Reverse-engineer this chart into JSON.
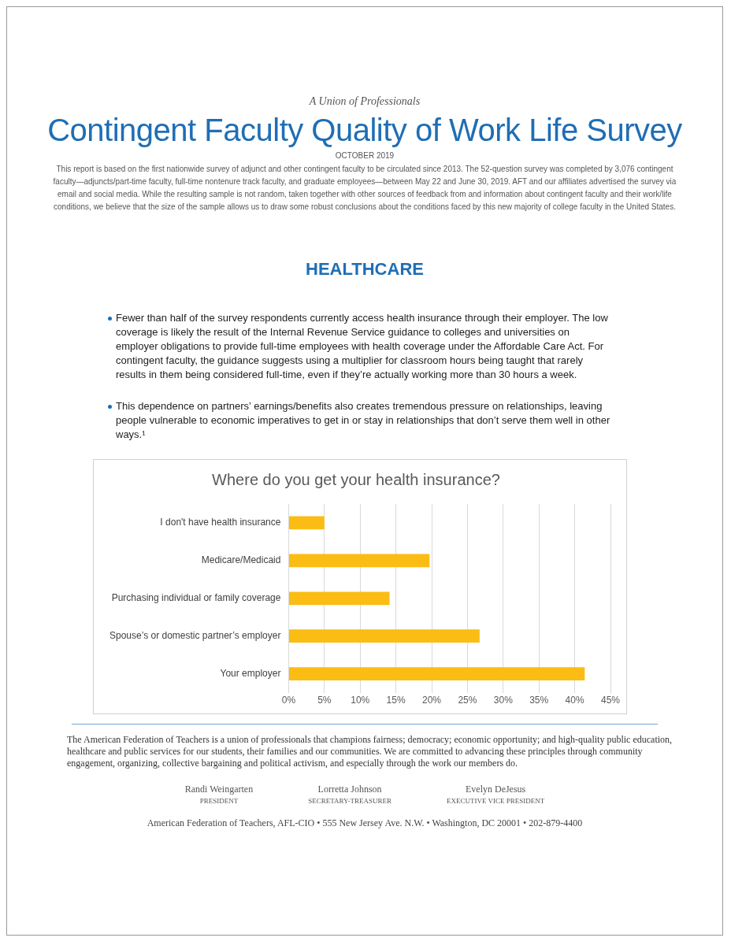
{
  "chart_data": {
    "type": "bar",
    "orientation": "horizontal",
    "title": "Where do you get your health insurance?",
    "categories": [
      "I don't have health insurance",
      "Medicare/Medicaid",
      "Purchasing individual or family coverage",
      "Spouse’s or domestic partner’s employer",
      "Your employer"
    ],
    "values": [
      5,
      19.7,
      14.1,
      26.7,
      41.4
    ],
    "color": "#fbbc14",
    "xlim": [
      0,
      45
    ],
    "xticks": [
      {
        "value": 0,
        "label": "0%"
      },
      {
        "value": 5,
        "label": "5%"
      },
      {
        "value": 10,
        "label": "10%"
      },
      {
        "value": 15,
        "label": "15%"
      },
      {
        "value": 20,
        "label": "20%"
      },
      {
        "value": 25,
        "label": "25%"
      },
      {
        "value": 30,
        "label": "30%"
      },
      {
        "value": 35,
        "label": "35%"
      },
      {
        "value": 40,
        "label": "40%"
      },
      {
        "value": 45,
        "label": "45%"
      }
    ],
    "grid": "x",
    "legend": false,
    "annotations": [
      "A Union of Professionals",
      "Contingent Faculty Quality of Work Life Survey",
      "OCTOBER 2019",
      "This report is based on the first nationwide survey of adjunct and other contingent faculty to be circulated since 2013. The 52-question survey was completed by 3,076 contingent faculty—adjuncts/part-time faculty, full-time nontenure track faculty, and graduate employees—between May 22 and June 30, 2019. AFT and our affiliates advertised the survey via email and social media. While the resulting sample is not random, taken together with other sources of feedback from and information about contingent faculty and their work/life conditions, we believe that the size of the sample allows us to draw some robust conclusions about the conditions faced by this new majority of college faculty in the United States.",
      "HEALTHCARE",
      "Fewer than half of the survey respondents currently access health insurance through their employer. The low coverage is likely the result of the Internal Revenue Service guidance to colleges and universities on employer obligations to provide full-time employees with health coverage under the Affordable Care Act. For contingent faculty, the guidance suggests using a multiplier for classroom hours being taught that rarely results in them being considered full-time, even if they’re actually working more than 30 hours a week.",
      "This dependence on partners’ earnings/benefits also creates tremendous pressure on relationships, leaving people vulnerable to economic imperatives to get in or stay in relationships that don’t serve them well in other ways.¹",
      "The American Federation of Teachers is a union of professionals that champions fairness; democracy; economic opportunity; and high-quality public education, healthcare and public services for our students, their families and our communities. We are committed to advancing these principles through community engagement, organizing, collective bargaining and political activism, and especially through the work our members do.",
      "Randi Weingarten",
      "PRESIDENT",
      "Lorretta Johnson",
      "SECRETARY-TREASURER",
      "Evelyn DeJesus",
      "EXECUTIVE VICE PRESIDENT",
      "American Federation of Teachers, AFL-CIO • 555 New Jersey Ave. N.W. • Washington, DC 20001 • 202-879-4400"
    ]
  }
}
